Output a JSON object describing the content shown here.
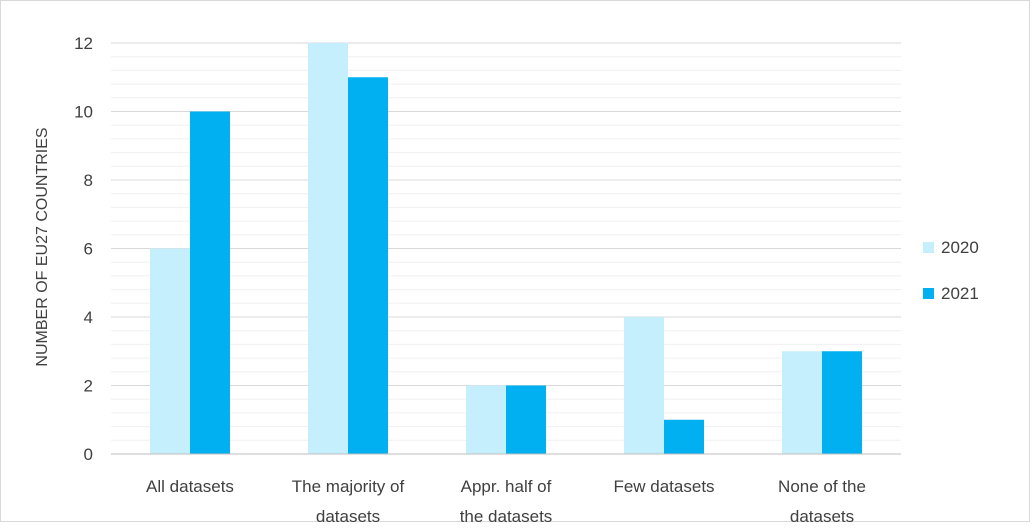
{
  "chart_data": {
    "type": "bar",
    "categories": [
      [
        "All datasets"
      ],
      [
        "The majority of",
        "datasets"
      ],
      [
        "Appr. half of",
        "the datasets"
      ],
      [
        "Few datasets"
      ],
      [
        "None of the",
        "datasets"
      ]
    ],
    "series": [
      {
        "name": "2020",
        "values": [
          6,
          12,
          2,
          4,
          3
        ],
        "color": "#c5effd"
      },
      {
        "name": "2021",
        "values": [
          10,
          11,
          2,
          1,
          3
        ],
        "color": "#00b0f0"
      }
    ],
    "ylabel": "NUMBER OF EU27 COUNTRIES",
    "ylim": [
      0,
      12
    ],
    "yticks": [
      "0",
      "2",
      "4",
      "6",
      "8",
      "10",
      "12"
    ],
    "ytick_values": [
      0,
      2,
      4,
      6,
      8,
      10,
      12
    ],
    "grid": true,
    "legend": "right",
    "colors": {
      "major_grid": "#d9d9d9",
      "minor_grid": "#f0f0f0",
      "axis": "#bfbfbf",
      "text": "#404040"
    }
  }
}
